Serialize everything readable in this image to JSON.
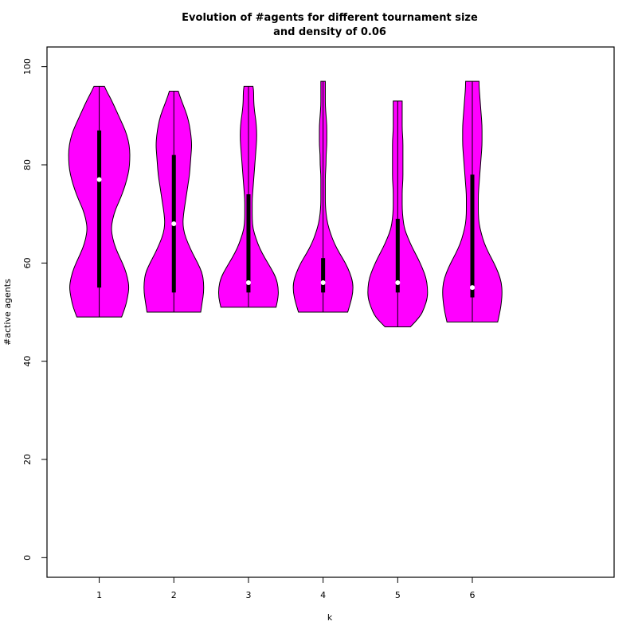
{
  "chart_data": {
    "type": "violin",
    "title_line1": "Evolution of #agents for different tournament size",
    "title_line2": "and density of 0.06",
    "xlabel": "k",
    "ylabel": "#active agents",
    "ylim": [
      -4,
      104
    ],
    "xlim": [
      0.3,
      7.9
    ],
    "yticks": [
      0,
      20,
      40,
      60,
      80,
      100
    ],
    "categories": [
      "1",
      "2",
      "3",
      "4",
      "5",
      "6"
    ],
    "fill_color": "#ff00ff",
    "violins": [
      {
        "k": "1",
        "min": 49,
        "max": 96,
        "q1": 55,
        "median": 77,
        "q3": 87,
        "profile": [
          [
            49,
            0.3
          ],
          [
            51,
            0.35
          ],
          [
            53,
            0.38
          ],
          [
            55,
            0.4
          ],
          [
            57,
            0.38
          ],
          [
            59,
            0.34
          ],
          [
            61,
            0.28
          ],
          [
            63,
            0.22
          ],
          [
            65,
            0.18
          ],
          [
            67,
            0.16
          ],
          [
            69,
            0.18
          ],
          [
            71,
            0.22
          ],
          [
            73,
            0.28
          ],
          [
            75,
            0.33
          ],
          [
            77,
            0.37
          ],
          [
            79,
            0.4
          ],
          [
            81,
            0.41
          ],
          [
            83,
            0.41
          ],
          [
            85,
            0.39
          ],
          [
            87,
            0.35
          ],
          [
            89,
            0.29
          ],
          [
            91,
            0.23
          ],
          [
            93,
            0.17
          ],
          [
            95,
            0.1
          ],
          [
            96,
            0.07
          ]
        ]
      },
      {
        "k": "2",
        "min": 50,
        "max": 95,
        "q1": 54,
        "median": 68,
        "q3": 82,
        "profile": [
          [
            50,
            0.36
          ],
          [
            52,
            0.38
          ],
          [
            54,
            0.4
          ],
          [
            56,
            0.4
          ],
          [
            58,
            0.38
          ],
          [
            60,
            0.32
          ],
          [
            62,
            0.25
          ],
          [
            64,
            0.19
          ],
          [
            66,
            0.14
          ],
          [
            68,
            0.12
          ],
          [
            70,
            0.13
          ],
          [
            72,
            0.15
          ],
          [
            74,
            0.17
          ],
          [
            76,
            0.19
          ],
          [
            78,
            0.21
          ],
          [
            80,
            0.22
          ],
          [
            82,
            0.23
          ],
          [
            84,
            0.24
          ],
          [
            86,
            0.23
          ],
          [
            88,
            0.21
          ],
          [
            90,
            0.18
          ],
          [
            92,
            0.13
          ],
          [
            94,
            0.08
          ],
          [
            95,
            0.06
          ]
        ]
      },
      {
        "k": "3",
        "min": 51,
        "max": 96,
        "q1": 54,
        "median": 56,
        "q3": 74,
        "profile": [
          [
            51,
            0.37
          ],
          [
            53,
            0.4
          ],
          [
            55,
            0.4
          ],
          [
            57,
            0.37
          ],
          [
            59,
            0.3
          ],
          [
            61,
            0.22
          ],
          [
            63,
            0.15
          ],
          [
            65,
            0.1
          ],
          [
            67,
            0.06
          ],
          [
            69,
            0.05
          ],
          [
            71,
            0.05
          ],
          [
            73,
            0.05
          ],
          [
            75,
            0.06
          ],
          [
            77,
            0.07
          ],
          [
            79,
            0.08
          ],
          [
            81,
            0.09
          ],
          [
            83,
            0.1
          ],
          [
            85,
            0.11
          ],
          [
            87,
            0.11
          ],
          [
            89,
            0.1
          ],
          [
            91,
            0.08
          ],
          [
            93,
            0.07
          ],
          [
            95,
            0.07
          ],
          [
            96,
            0.06
          ]
        ]
      },
      {
        "k": "4",
        "min": 50,
        "max": 97,
        "q1": 54,
        "median": 56,
        "q3": 61,
        "profile": [
          [
            50,
            0.33
          ],
          [
            52,
            0.37
          ],
          [
            54,
            0.4
          ],
          [
            56,
            0.4
          ],
          [
            58,
            0.36
          ],
          [
            60,
            0.3
          ],
          [
            62,
            0.22
          ],
          [
            64,
            0.15
          ],
          [
            66,
            0.1
          ],
          [
            68,
            0.06
          ],
          [
            70,
            0.04
          ],
          [
            72,
            0.03
          ],
          [
            74,
            0.03
          ],
          [
            76,
            0.03
          ],
          [
            78,
            0.03
          ],
          [
            80,
            0.04
          ],
          [
            82,
            0.04
          ],
          [
            84,
            0.05
          ],
          [
            86,
            0.05
          ],
          [
            88,
            0.05
          ],
          [
            90,
            0.04
          ],
          [
            92,
            0.03
          ],
          [
            94,
            0.03
          ],
          [
            96,
            0.03
          ],
          [
            97,
            0.03
          ]
        ]
      },
      {
        "k": "5",
        "min": 47,
        "max": 93,
        "q1": 54,
        "median": 56,
        "q3": 69,
        "profile": [
          [
            47,
            0.17
          ],
          [
            49,
            0.3
          ],
          [
            51,
            0.36
          ],
          [
            53,
            0.4
          ],
          [
            55,
            0.4
          ],
          [
            57,
            0.38
          ],
          [
            59,
            0.33
          ],
          [
            61,
            0.27
          ],
          [
            63,
            0.2
          ],
          [
            65,
            0.14
          ],
          [
            67,
            0.09
          ],
          [
            69,
            0.07
          ],
          [
            71,
            0.06
          ],
          [
            73,
            0.06
          ],
          [
            75,
            0.06
          ],
          [
            77,
            0.07
          ],
          [
            79,
            0.07
          ],
          [
            81,
            0.07
          ],
          [
            83,
            0.07
          ],
          [
            85,
            0.07
          ],
          [
            87,
            0.06
          ],
          [
            89,
            0.06
          ],
          [
            91,
            0.06
          ],
          [
            93,
            0.06
          ]
        ]
      },
      {
        "k": "6",
        "min": 48,
        "max": 97,
        "q1": 53,
        "median": 55,
        "q3": 78,
        "profile": [
          [
            48,
            0.34
          ],
          [
            50,
            0.37
          ],
          [
            52,
            0.39
          ],
          [
            54,
            0.4
          ],
          [
            56,
            0.39
          ],
          [
            58,
            0.35
          ],
          [
            60,
            0.29
          ],
          [
            62,
            0.22
          ],
          [
            64,
            0.16
          ],
          [
            66,
            0.12
          ],
          [
            68,
            0.09
          ],
          [
            70,
            0.08
          ],
          [
            72,
            0.08
          ],
          [
            74,
            0.08
          ],
          [
            76,
            0.09
          ],
          [
            78,
            0.1
          ],
          [
            80,
            0.11
          ],
          [
            82,
            0.12
          ],
          [
            84,
            0.13
          ],
          [
            86,
            0.13
          ],
          [
            88,
            0.13
          ],
          [
            90,
            0.12
          ],
          [
            92,
            0.11
          ],
          [
            94,
            0.1
          ],
          [
            96,
            0.09
          ],
          [
            97,
            0.09
          ]
        ]
      }
    ]
  }
}
